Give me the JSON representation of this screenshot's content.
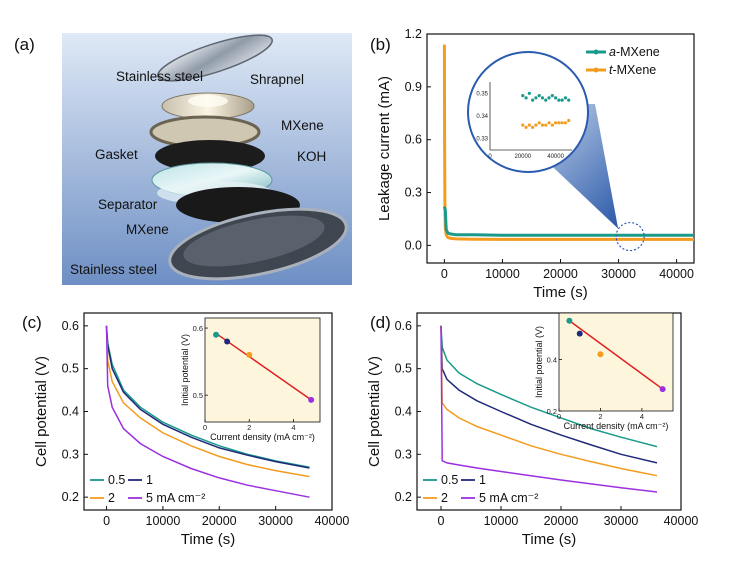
{
  "panels": {
    "a": "(a)",
    "b": "(b)",
    "c": "(c)",
    "d": "(d)"
  },
  "diagram": {
    "labels": [
      "Stainless steel",
      "Shrapnel",
      "MXene",
      "Gasket",
      "KOH",
      "Separator",
      "MXene",
      "Stainless steel"
    ]
  },
  "chart_data": [
    {
      "id": "b",
      "type": "line",
      "xlabel": "Time (s)",
      "ylabel": "Leakage current (mA)",
      "xlim": [
        -3000,
        43000
      ],
      "ylim": [
        -0.1,
        1.2
      ],
      "xticks": [
        "0",
        "10000",
        "20000",
        "30000",
        "40000"
      ],
      "yticks": [
        "0.0",
        "0.3",
        "0.6",
        "0.9",
        "1.2"
      ],
      "legend_position": "top-right",
      "series": [
        {
          "name_prefix": "a",
          "name_suffix": "-MXene",
          "color": "#1a9a8a",
          "x": [
            0,
            150,
            300,
            600,
            1000,
            2000,
            5000,
            10000,
            20000,
            30000,
            43000
          ],
          "y": [
            0.22,
            0.2,
            0.09,
            0.07,
            0.065,
            0.06,
            0.06,
            0.058,
            0.058,
            0.057,
            0.057
          ]
        },
        {
          "name_prefix": "t",
          "name_suffix": "-MXene",
          "color": "#f39c1f",
          "x": [
            0,
            40,
            80,
            150,
            300,
            600,
            1000,
            2000,
            5000,
            10000,
            20000,
            30000,
            43000
          ],
          "y": [
            1.14,
            0.6,
            0.25,
            0.1,
            0.06,
            0.045,
            0.04,
            0.037,
            0.035,
            0.034,
            0.034,
            0.034,
            0.034
          ]
        }
      ],
      "inset": {
        "xticks": [
          "0",
          "20000",
          "40000"
        ],
        "yticks": [
          "0.33",
          "0.34",
          "0.35"
        ],
        "xlim": [
          0,
          50000
        ],
        "ylim": [
          0.325,
          0.355
        ],
        "series": [
          {
            "color": "#1a9a8a",
            "x": [
              20000,
              22000,
              24000,
              26000,
              28000,
              30000,
              32000,
              34000,
              36000,
              38000,
              40000,
              42000,
              44000,
              46000,
              48000
            ],
            "y": [
              0.349,
              0.348,
              0.35,
              0.347,
              0.348,
              0.349,
              0.348,
              0.347,
              0.348,
              0.349,
              0.348,
              0.347,
              0.347,
              0.348,
              0.347
            ]
          },
          {
            "color": "#f39c1f",
            "x": [
              20000,
              22000,
              24000,
              26000,
              28000,
              30000,
              32000,
              34000,
              36000,
              38000,
              40000,
              42000,
              44000,
              46000,
              48000
            ],
            "y": [
              0.336,
              0.335,
              0.336,
              0.335,
              0.336,
              0.337,
              0.336,
              0.336,
              0.337,
              0.336,
              0.337,
              0.337,
              0.337,
              0.337,
              0.338
            ]
          }
        ]
      }
    },
    {
      "id": "c",
      "type": "line",
      "xlabel": "Time (s)",
      "ylabel": "Cell potential (V)",
      "xlim": [
        -4000,
        40000
      ],
      "ylim": [
        0.17,
        0.63
      ],
      "xticks": [
        "0",
        "10000",
        "20000",
        "30000",
        "40000"
      ],
      "yticks": [
        "0.2",
        "0.3",
        "0.4",
        "0.5",
        "0.6"
      ],
      "legend_labels": [
        "0.5",
        "1",
        "2",
        "5 mA cm⁻²"
      ],
      "legend_position": "bottom-left",
      "series": [
        {
          "name": "0.5",
          "color": "#1a9a8a",
          "x": [
            0,
            200,
            1000,
            3000,
            6000,
            10000,
            15000,
            20000,
            25000,
            30000,
            36000
          ],
          "y": [
            0.6,
            0.56,
            0.51,
            0.45,
            0.41,
            0.375,
            0.345,
            0.32,
            0.3,
            0.285,
            0.27
          ]
        },
        {
          "name": "1",
          "color": "#1f2a7a",
          "x": [
            0,
            200,
            1000,
            3000,
            6000,
            10000,
            15000,
            20000,
            25000,
            30000,
            36000
          ],
          "y": [
            0.6,
            0.555,
            0.5,
            0.445,
            0.405,
            0.37,
            0.34,
            0.315,
            0.298,
            0.283,
            0.268
          ]
        },
        {
          "name": "2",
          "color": "#f39c1f",
          "x": [
            0,
            200,
            1000,
            3000,
            6000,
            10000,
            15000,
            20000,
            25000,
            30000,
            36000
          ],
          "y": [
            0.6,
            0.52,
            0.47,
            0.42,
            0.385,
            0.35,
            0.32,
            0.295,
            0.276,
            0.262,
            0.248
          ]
        },
        {
          "name": "5",
          "color": "#9b30e0",
          "x": [
            0,
            200,
            1000,
            3000,
            6000,
            10000,
            15000,
            20000,
            25000,
            30000,
            36000
          ],
          "y": [
            0.6,
            0.46,
            0.41,
            0.36,
            0.325,
            0.295,
            0.267,
            0.245,
            0.228,
            0.215,
            0.2
          ]
        }
      ],
      "inset": {
        "xlabel": "Current density (mA cm⁻²)",
        "ylabel": "Initial potential (V)",
        "xticks": [
          "0",
          "2",
          "4"
        ],
        "yticks": [
          "0.5",
          "0.6"
        ],
        "xlim": [
          0,
          5.2
        ],
        "ylim": [
          0.46,
          0.615
        ],
        "points": [
          {
            "x": 0.5,
            "y": 0.59,
            "color": "#1a9a8a"
          },
          {
            "x": 1,
            "y": 0.58,
            "color": "#1f2a7a"
          },
          {
            "x": 2,
            "y": 0.56,
            "color": "#f39c1f"
          },
          {
            "x": 4.8,
            "y": 0.493,
            "color": "#9b30e0"
          }
        ],
        "fit": {
          "x": [
            0.5,
            4.8
          ],
          "y": [
            0.592,
            0.493
          ],
          "color": "#e02020"
        }
      }
    },
    {
      "id": "d",
      "type": "line",
      "xlabel": "Time (s)",
      "ylabel": "Cell potential (V)",
      "xlim": [
        -4000,
        40000
      ],
      "ylim": [
        0.17,
        0.63
      ],
      "xticks": [
        "0",
        "10000",
        "20000",
        "30000",
        "40000"
      ],
      "yticks": [
        "0.2",
        "0.3",
        "0.4",
        "0.5",
        "0.6"
      ],
      "legend_labels": [
        "0.5",
        "1",
        "2",
        "5 mA cm⁻²"
      ],
      "legend_position": "bottom-left",
      "series": [
        {
          "name": "0.5",
          "color": "#1a9a8a",
          "x": [
            0,
            200,
            1000,
            3000,
            6000,
            10000,
            15000,
            20000,
            25000,
            30000,
            36000
          ],
          "y": [
            0.6,
            0.55,
            0.52,
            0.49,
            0.465,
            0.44,
            0.41,
            0.385,
            0.36,
            0.34,
            0.318
          ]
        },
        {
          "name": "1",
          "color": "#1f2a7a",
          "x": [
            0,
            200,
            1000,
            3000,
            6000,
            10000,
            15000,
            20000,
            25000,
            30000,
            36000
          ],
          "y": [
            0.6,
            0.5,
            0.475,
            0.45,
            0.425,
            0.4,
            0.37,
            0.345,
            0.322,
            0.3,
            0.28
          ]
        },
        {
          "name": "2",
          "color": "#f39c1f",
          "x": [
            0,
            200,
            1000,
            3000,
            6000,
            10000,
            15000,
            20000,
            25000,
            30000,
            36000
          ],
          "y": [
            0.6,
            0.42,
            0.405,
            0.385,
            0.365,
            0.345,
            0.32,
            0.3,
            0.283,
            0.267,
            0.25
          ]
        },
        {
          "name": "5",
          "color": "#9b30e0",
          "x": [
            0,
            200,
            1000,
            3000,
            6000,
            10000,
            15000,
            20000,
            25000,
            30000,
            36000
          ],
          "y": [
            0.6,
            0.285,
            0.28,
            0.275,
            0.268,
            0.26,
            0.25,
            0.24,
            0.231,
            0.222,
            0.212
          ]
        }
      ],
      "inset": {
        "xlabel": "Current density (mA cm⁻²)",
        "ylabel": "Initial potential (V)",
        "xticks": [
          "0",
          "2",
          "4"
        ],
        "yticks": [
          "0.2",
          "0.4"
        ],
        "xlim": [
          0,
          5.5
        ],
        "ylim": [
          0.2,
          0.58
        ],
        "points": [
          {
            "x": 0.5,
            "y": 0.55,
            "color": "#1a9a8a"
          },
          {
            "x": 1,
            "y": 0.5,
            "color": "#1f2a7a"
          },
          {
            "x": 2,
            "y": 0.42,
            "color": "#f39c1f"
          },
          {
            "x": 5,
            "y": 0.285,
            "color": "#9b30e0"
          }
        ],
        "fit": {
          "x": [
            0.5,
            5
          ],
          "y": [
            0.55,
            0.285
          ],
          "color": "#e02020"
        }
      }
    }
  ]
}
